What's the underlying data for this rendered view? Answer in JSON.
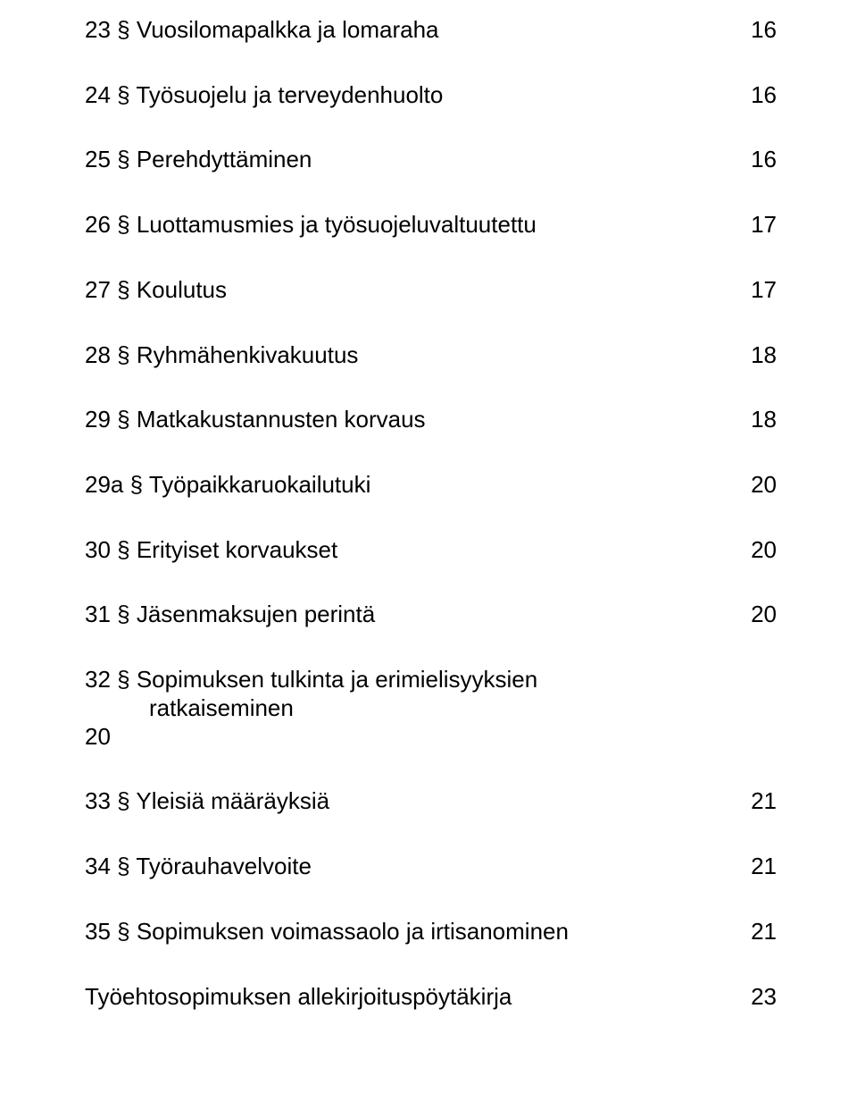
{
  "text_color": "#000000",
  "background_color": "#ffffff",
  "font_size_pt": 20,
  "toc": [
    {
      "title": "23 § Vuosilomapalkka ja lomaraha",
      "page": "16"
    },
    {
      "title": "24 § Työsuojelu ja terveydenhuolto",
      "page": "16"
    },
    {
      "title": "25 § Perehdyttäminen",
      "page": "16"
    },
    {
      "title": "26 § Luottamusmies ja työsuojeluvaltuutettu",
      "page": "17"
    },
    {
      "title": "27 § Koulutus",
      "page": "17"
    },
    {
      "title": "28 § Ryhmähenkivakuutus",
      "page": "18"
    },
    {
      "title": "29 § Matkakustannusten korvaus",
      "page": "18"
    },
    {
      "title": "29a § Työpaikkaruokailutuki",
      "page": "20"
    },
    {
      "title": "30 § Erityiset korvaukset",
      "page": "20"
    },
    {
      "title": "31 § Jäsenmaksujen perintä",
      "page": "20"
    }
  ],
  "entry32": {
    "line1": "32 § Sopimuksen tulkinta ja erimielisyyksien",
    "line2": "ratkaiseminen",
    "page": "20"
  },
  "toc_after": [
    {
      "title": "33 § Yleisiä määräyksiä",
      "page": "21"
    },
    {
      "title": "34 § Työrauhavelvoite",
      "page": "21"
    },
    {
      "title": "35 § Sopimuksen voimassaolo ja irtisanominen",
      "page": "21"
    },
    {
      "title": "Työehtosopimuksen allekirjoituspöytäkirja",
      "page": "23"
    }
  ]
}
